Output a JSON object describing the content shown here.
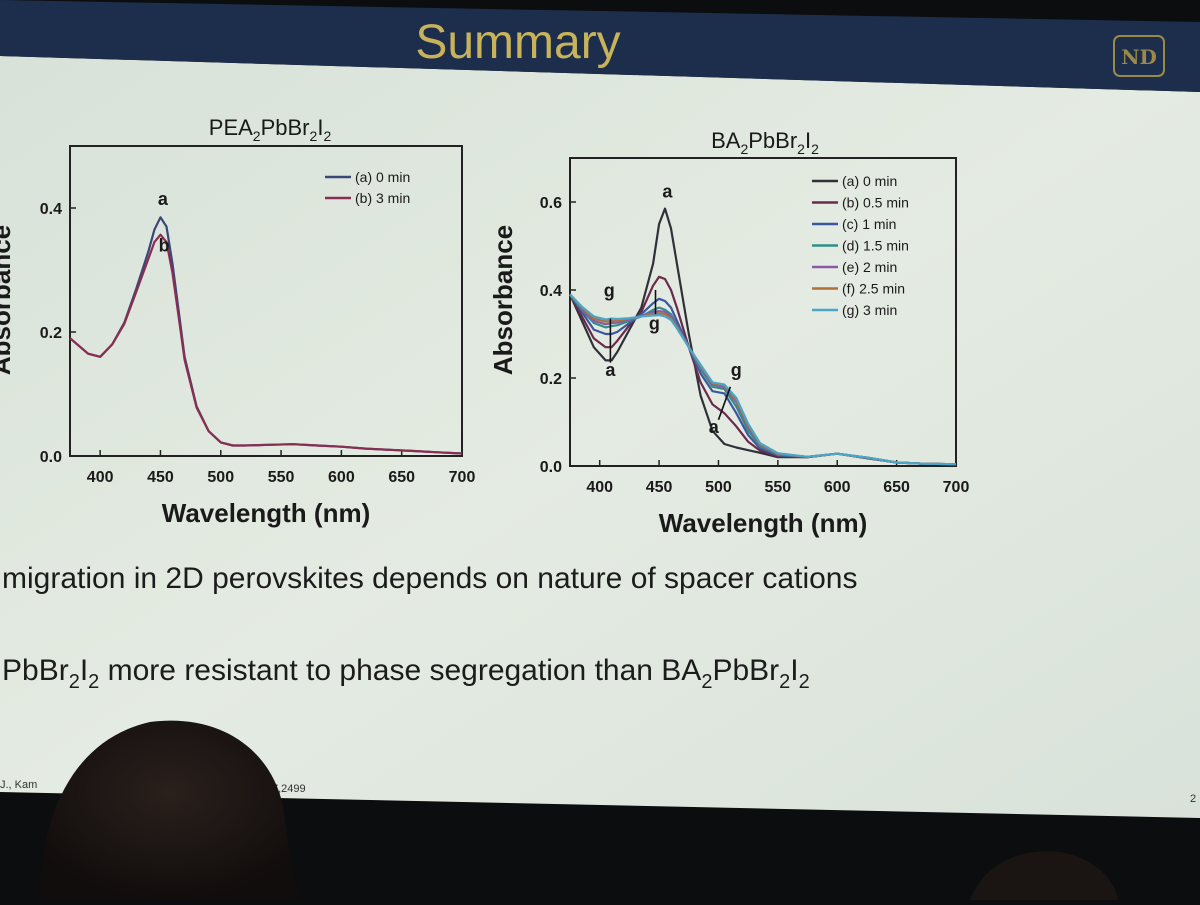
{
  "slide": {
    "title": "Summary",
    "bullet1": "migration in 2D perovskites depends on nature of spacer cations",
    "bullet2": {
      "a": "PbBr",
      "b": "2",
      "c": "I",
      "d": "2",
      "e": " more resistant to phase segregation than BA",
      "f": "2",
      "g": "PbBr",
      "h": "2",
      "i": "I",
      "j": "2"
    },
    "citation_left": "J., Kam",
    "citation_right": "7,2499",
    "page_number": "2",
    "logo_text": "ND"
  },
  "colors": {
    "header_band": "#1d2e4d",
    "title_gold": "#c9b35a",
    "slide_bg": "#dfe7df",
    "audience": "#1a1412"
  },
  "chart_data": [
    {
      "type": "line",
      "title": "PEA2PbBr2I2",
      "title_parts": [
        "PEA",
        "2",
        "PbBr",
        "2",
        "I",
        "2"
      ],
      "xlabel": "Wavelength (nm)",
      "ylabel": "Absorbance",
      "xlim": [
        375,
        700
      ],
      "ylim": [
        0,
        0.5
      ],
      "x_ticks": [
        400,
        450,
        500,
        550,
        600,
        650,
        700
      ],
      "y_ticks": [
        0.0,
        0.2,
        0.4
      ],
      "y_tick_labels": [
        "0.0",
        "0.2",
        "0.4"
      ],
      "legend_position": "top-right",
      "series": [
        {
          "name": "(a) 0 min",
          "color": "#3a4678",
          "x": [
            375,
            390,
            400,
            410,
            420,
            430,
            440,
            445,
            450,
            455,
            460,
            465,
            470,
            480,
            490,
            500,
            510,
            520,
            540,
            560,
            580,
            600,
            620,
            640,
            660,
            680,
            700
          ],
          "y": [
            0.19,
            0.165,
            0.16,
            0.18,
            0.215,
            0.27,
            0.33,
            0.365,
            0.385,
            0.37,
            0.31,
            0.235,
            0.16,
            0.08,
            0.04,
            0.022,
            0.017,
            0.017,
            0.018,
            0.019,
            0.017,
            0.015,
            0.012,
            0.01,
            0.008,
            0.006,
            0.004
          ]
        },
        {
          "name": "(b) 3 min",
          "color": "#8a2d52",
          "x": [
            375,
            390,
            400,
            410,
            420,
            430,
            440,
            445,
            450,
            455,
            460,
            465,
            470,
            480,
            490,
            500,
            510,
            520,
            540,
            560,
            580,
            600,
            620,
            640,
            660,
            680,
            700
          ],
          "y": [
            0.19,
            0.165,
            0.16,
            0.18,
            0.213,
            0.265,
            0.318,
            0.345,
            0.357,
            0.345,
            0.295,
            0.225,
            0.155,
            0.078,
            0.04,
            0.022,
            0.017,
            0.017,
            0.018,
            0.019,
            0.017,
            0.015,
            0.012,
            0.01,
            0.008,
            0.006,
            0.004
          ]
        }
      ],
      "annotations": [
        {
          "text": "a",
          "x": 452,
          "y": 0.405
        },
        {
          "text": "b",
          "x": 453,
          "y": 0.33
        }
      ]
    },
    {
      "type": "line",
      "title": "BA2PbBr2I2",
      "title_parts": [
        "BA",
        "2",
        "PbBr",
        "2",
        "I",
        "2"
      ],
      "xlabel": "Wavelength (nm)",
      "ylabel": "Absorbance",
      "xlim": [
        375,
        700
      ],
      "ylim": [
        0,
        0.7
      ],
      "x_ticks": [
        400,
        450,
        500,
        550,
        600,
        650,
        700
      ],
      "y_ticks": [
        0.0,
        0.2,
        0.4,
        0.6
      ],
      "y_tick_labels": [
        "0.0",
        "0.2",
        "0.4",
        "0.6"
      ],
      "legend_position": "top-right",
      "series": [
        {
          "name": "(a) 0 min",
          "color": "#303038",
          "x": [
            375,
            385,
            395,
            405,
            410,
            415,
            425,
            435,
            445,
            450,
            455,
            460,
            465,
            475,
            485,
            495,
            505,
            515,
            525,
            535,
            550,
            575,
            600,
            625,
            650,
            675,
            700
          ],
          "y": [
            0.39,
            0.33,
            0.27,
            0.24,
            0.24,
            0.26,
            0.31,
            0.36,
            0.46,
            0.55,
            0.585,
            0.54,
            0.46,
            0.3,
            0.16,
            0.08,
            0.05,
            0.042,
            0.036,
            0.03,
            0.02,
            0.02,
            0.028,
            0.018,
            0.008,
            0.005,
            0.004
          ]
        },
        {
          "name": "(b) 0.5 min",
          "color": "#6a2a4c",
          "x": [
            375,
            385,
            395,
            405,
            410,
            415,
            425,
            435,
            445,
            450,
            455,
            460,
            465,
            475,
            485,
            495,
            505,
            515,
            525,
            535,
            550,
            575,
            600,
            625,
            650,
            675,
            700
          ],
          "y": [
            0.39,
            0.34,
            0.29,
            0.27,
            0.27,
            0.285,
            0.32,
            0.35,
            0.41,
            0.43,
            0.425,
            0.4,
            0.36,
            0.27,
            0.19,
            0.14,
            0.12,
            0.09,
            0.055,
            0.035,
            0.022,
            0.02,
            0.028,
            0.018,
            0.008,
            0.005,
            0.004
          ]
        },
        {
          "name": "(c) 1 min",
          "color": "#3a57a0",
          "x": [
            375,
            385,
            395,
            405,
            410,
            415,
            425,
            435,
            445,
            450,
            455,
            460,
            465,
            475,
            485,
            495,
            505,
            515,
            525,
            535,
            550,
            575,
            600,
            625,
            650,
            675,
            700
          ],
          "y": [
            0.39,
            0.35,
            0.31,
            0.3,
            0.3,
            0.305,
            0.325,
            0.345,
            0.37,
            0.38,
            0.375,
            0.36,
            0.33,
            0.27,
            0.21,
            0.17,
            0.165,
            0.12,
            0.07,
            0.04,
            0.024,
            0.021,
            0.028,
            0.019,
            0.008,
            0.005,
            0.004
          ]
        },
        {
          "name": "(d) 1.5 min",
          "color": "#2f8f88",
          "x": [
            375,
            385,
            395,
            405,
            410,
            415,
            425,
            435,
            445,
            450,
            455,
            460,
            465,
            475,
            485,
            495,
            505,
            515,
            525,
            535,
            550,
            575,
            600,
            625,
            650,
            675,
            700
          ],
          "y": [
            0.39,
            0.355,
            0.325,
            0.315,
            0.318,
            0.32,
            0.33,
            0.34,
            0.355,
            0.36,
            0.355,
            0.345,
            0.32,
            0.27,
            0.22,
            0.18,
            0.175,
            0.135,
            0.08,
            0.045,
            0.026,
            0.021,
            0.028,
            0.019,
            0.008,
            0.005,
            0.004
          ]
        },
        {
          "name": "(e) 2 min",
          "color": "#8a5aa8",
          "x": [
            375,
            385,
            395,
            405,
            410,
            415,
            425,
            435,
            445,
            450,
            455,
            460,
            465,
            475,
            485,
            495,
            505,
            515,
            525,
            535,
            550,
            575,
            600,
            625,
            650,
            675,
            700
          ],
          "y": [
            0.39,
            0.358,
            0.33,
            0.322,
            0.325,
            0.326,
            0.333,
            0.34,
            0.35,
            0.352,
            0.35,
            0.34,
            0.318,
            0.27,
            0.225,
            0.185,
            0.18,
            0.145,
            0.088,
            0.048,
            0.027,
            0.021,
            0.028,
            0.019,
            0.008,
            0.005,
            0.004
          ]
        },
        {
          "name": "(f) 2.5 min",
          "color": "#b0703a",
          "x": [
            375,
            385,
            395,
            405,
            410,
            415,
            425,
            435,
            445,
            450,
            455,
            460,
            465,
            475,
            485,
            495,
            505,
            515,
            525,
            535,
            550,
            575,
            600,
            625,
            650,
            675,
            700
          ],
          "y": [
            0.39,
            0.36,
            0.335,
            0.328,
            0.33,
            0.33,
            0.335,
            0.34,
            0.345,
            0.347,
            0.345,
            0.335,
            0.315,
            0.27,
            0.228,
            0.188,
            0.183,
            0.15,
            0.092,
            0.05,
            0.028,
            0.021,
            0.028,
            0.019,
            0.008,
            0.005,
            0.004
          ]
        },
        {
          "name": "(g) 3 min",
          "color": "#4aa6c8",
          "x": [
            375,
            385,
            395,
            405,
            410,
            415,
            425,
            435,
            445,
            450,
            455,
            460,
            465,
            475,
            485,
            495,
            505,
            515,
            525,
            535,
            550,
            575,
            600,
            625,
            650,
            675,
            700
          ],
          "y": [
            0.39,
            0.362,
            0.34,
            0.333,
            0.335,
            0.334,
            0.336,
            0.34,
            0.342,
            0.343,
            0.34,
            0.332,
            0.313,
            0.27,
            0.23,
            0.19,
            0.185,
            0.155,
            0.096,
            0.052,
            0.029,
            0.021,
            0.028,
            0.019,
            0.008,
            0.005,
            0.004
          ]
        }
      ],
      "annotations": [
        {
          "text": "a",
          "x": 457,
          "y": 0.61
        },
        {
          "text": "g",
          "x": 408,
          "y": 0.385
        },
        {
          "text": "a",
          "x": 409,
          "y": 0.205
        },
        {
          "text": "g",
          "x": 446,
          "y": 0.31
        },
        {
          "text": "g",
          "x": 515,
          "y": 0.205
        },
        {
          "text": "a",
          "x": 496,
          "y": 0.075
        }
      ]
    }
  ]
}
